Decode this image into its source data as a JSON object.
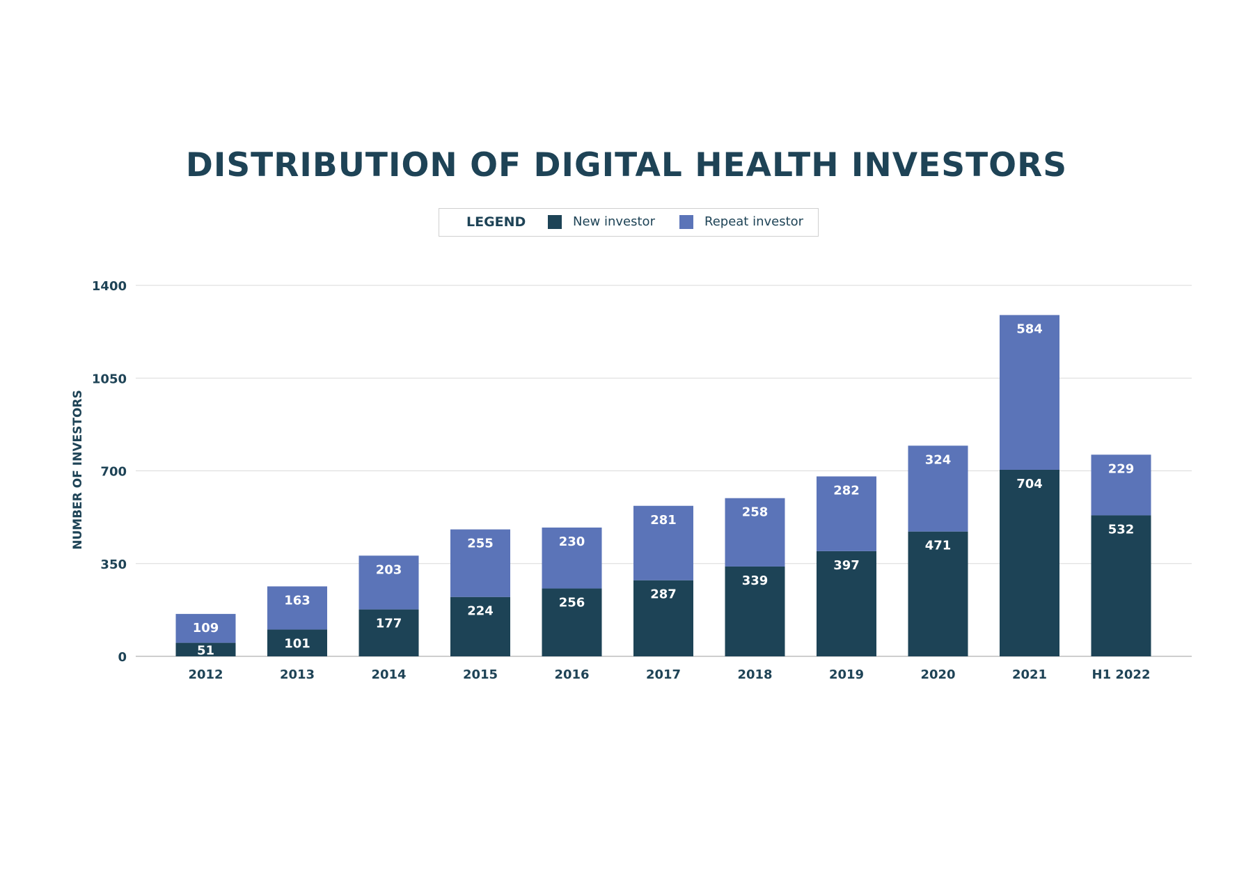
{
  "chart_data": {
    "type": "bar",
    "stacked": true,
    "title": "DISTRIBUTION OF DIGITAL HEALTH INVESTORS",
    "ylabel": "NUMBER OF INVESTORS",
    "xlabel": "",
    "ylim": [
      0,
      1400
    ],
    "yticks": [
      0,
      350,
      700,
      1050,
      1400
    ],
    "grid": true,
    "legend_title": "LEGEND",
    "legend_position": "top-center",
    "categories": [
      "2012",
      "2013",
      "2014",
      "2015",
      "2016",
      "2017",
      "2018",
      "2019",
      "2020",
      "2021",
      "H1 2022"
    ],
    "series": [
      {
        "name": "New investor",
        "color": "#1d4356",
        "values": [
          51,
          101,
          177,
          224,
          256,
          287,
          339,
          397,
          471,
          704,
          532
        ]
      },
      {
        "name": "Repeat investor",
        "color": "#5b74b8",
        "values": [
          109,
          163,
          203,
          255,
          230,
          281,
          258,
          282,
          324,
          584,
          229
        ]
      }
    ]
  }
}
